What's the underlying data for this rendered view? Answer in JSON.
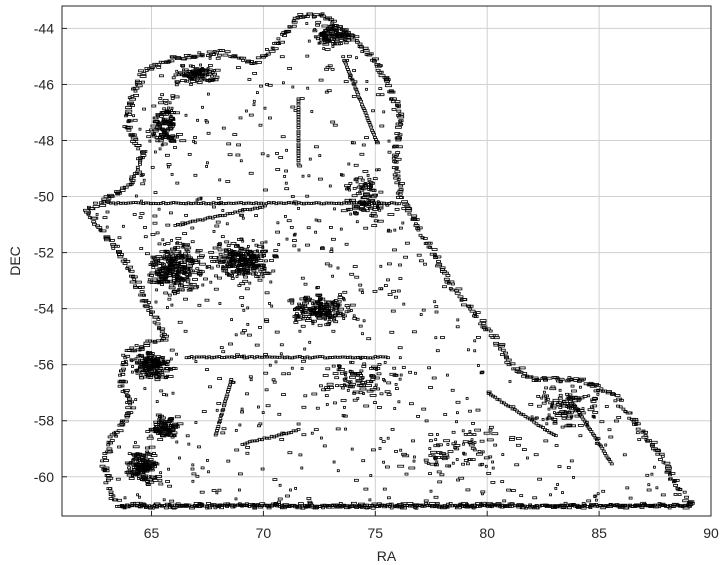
{
  "chart_data": {
    "type": "scatter",
    "title": "",
    "xlabel": "RA",
    "ylabel": "DEC",
    "xlim": [
      61.0,
      90.0
    ],
    "ylim": [
      -61.4,
      -43.2
    ],
    "xticks": [
      65,
      70,
      75,
      80,
      85,
      90
    ],
    "yticks": [
      -60,
      -58,
      -56,
      -54,
      -52,
      -50,
      -48,
      -46,
      -44
    ],
    "grid": true,
    "marker_color": "#000000",
    "grid_color": "#d0d0d0",
    "footprint_outline": [
      [
        71.5,
        -43.5
      ],
      [
        72.5,
        -43.5
      ],
      [
        73.8,
        -44.2
      ],
      [
        74.8,
        -45.0
      ],
      [
        75.5,
        -46.0
      ],
      [
        76.0,
        -47.0
      ],
      [
        75.8,
        -48.5
      ],
      [
        76.0,
        -50.0
      ],
      [
        76.8,
        -51.0
      ],
      [
        77.5,
        -52.0
      ],
      [
        78.2,
        -53.0
      ],
      [
        79.2,
        -54.0
      ],
      [
        80.2,
        -55.0
      ],
      [
        81.0,
        -56.0
      ],
      [
        82.0,
        -56.5
      ],
      [
        84.0,
        -56.5
      ],
      [
        85.5,
        -57.0
      ],
      [
        86.5,
        -58.0
      ],
      [
        87.5,
        -59.0
      ],
      [
        88.2,
        -60.0
      ],
      [
        89.0,
        -61.0
      ],
      [
        63.5,
        -61.0
      ],
      [
        63.0,
        -60.5
      ],
      [
        62.8,
        -59.5
      ],
      [
        63.2,
        -58.5
      ],
      [
        64.0,
        -57.5
      ],
      [
        63.5,
        -56.5
      ],
      [
        63.8,
        -55.5
      ],
      [
        65.5,
        -55.0
      ],
      [
        64.8,
        -54.0
      ],
      [
        64.2,
        -53.0
      ],
      [
        63.5,
        -52.0
      ],
      [
        62.5,
        -51.0
      ],
      [
        62.0,
        -50.5
      ],
      [
        63.0,
        -50.0
      ],
      [
        64.0,
        -49.5
      ],
      [
        64.5,
        -48.5
      ],
      [
        63.8,
        -47.5
      ],
      [
        64.0,
        -46.5
      ],
      [
        64.5,
        -45.5
      ],
      [
        66.0,
        -45.0
      ],
      [
        68.0,
        -44.8
      ],
      [
        69.5,
        -45.2
      ],
      [
        70.5,
        -44.5
      ]
    ],
    "point_clusters": [
      {
        "center": [
          66.0,
          -52.5
        ],
        "spread": [
          1.6,
          1.2
        ],
        "count": 260
      },
      {
        "center": [
          69.0,
          -52.3
        ],
        "spread": [
          1.8,
          1.0
        ],
        "count": 240
      },
      {
        "center": [
          72.5,
          -54.0
        ],
        "spread": [
          2.0,
          0.7
        ],
        "count": 180
      },
      {
        "center": [
          65.5,
          -47.5
        ],
        "spread": [
          1.0,
          1.2
        ],
        "count": 120
      },
      {
        "center": [
          67.0,
          -45.6
        ],
        "spread": [
          1.2,
          0.4
        ],
        "count": 90
      },
      {
        "center": [
          73.0,
          -44.2
        ],
        "spread": [
          1.2,
          0.6
        ],
        "count": 110
      },
      {
        "center": [
          65.0,
          -56.0
        ],
        "spread": [
          1.2,
          0.7
        ],
        "count": 160
      },
      {
        "center": [
          64.5,
          -59.6
        ],
        "spread": [
          1.0,
          0.8
        ],
        "count": 150
      },
      {
        "center": [
          65.5,
          -58.2
        ],
        "spread": [
          0.9,
          0.6
        ],
        "count": 100
      },
      {
        "center": [
          74.0,
          -56.5
        ],
        "spread": [
          2.5,
          1.0
        ],
        "count": 90
      },
      {
        "center": [
          83.5,
          -57.5
        ],
        "spread": [
          2.2,
          1.0
        ],
        "count": 100
      },
      {
        "center": [
          78.5,
          -59.0
        ],
        "spread": [
          3.5,
          1.2
        ],
        "count": 80
      },
      {
        "center": [
          74.5,
          -50.0
        ],
        "spread": [
          1.2,
          1.5
        ],
        "count": 90
      }
    ],
    "line_features": [
      {
        "from": [
          63.0,
          -50.2
        ],
        "to": [
          76.0,
          -50.2
        ]
      },
      {
        "from": [
          63.5,
          -61.0
        ],
        "to": [
          89.0,
          -61.0
        ]
      },
      {
        "from": [
          66.5,
          -55.7
        ],
        "to": [
          75.5,
          -55.7
        ]
      },
      {
        "from": [
          66.0,
          -51.0
        ],
        "to": [
          70.0,
          -50.3
        ]
      },
      {
        "from": [
          71.5,
          -46.5
        ],
        "to": [
          71.5,
          -48.8
        ]
      },
      {
        "from": [
          73.5,
          -45.0
        ],
        "to": [
          75.0,
          -48.0
        ]
      },
      {
        "from": [
          68.5,
          -56.5
        ],
        "to": [
          67.8,
          -58.5
        ]
      },
      {
        "from": [
          69.0,
          -58.8
        ],
        "to": [
          71.5,
          -58.3
        ]
      },
      {
        "from": [
          80.0,
          -57.0
        ],
        "to": [
          83.0,
          -58.5
        ]
      },
      {
        "from": [
          83.5,
          -57.0
        ],
        "to": [
          85.5,
          -59.5
        ]
      }
    ]
  }
}
